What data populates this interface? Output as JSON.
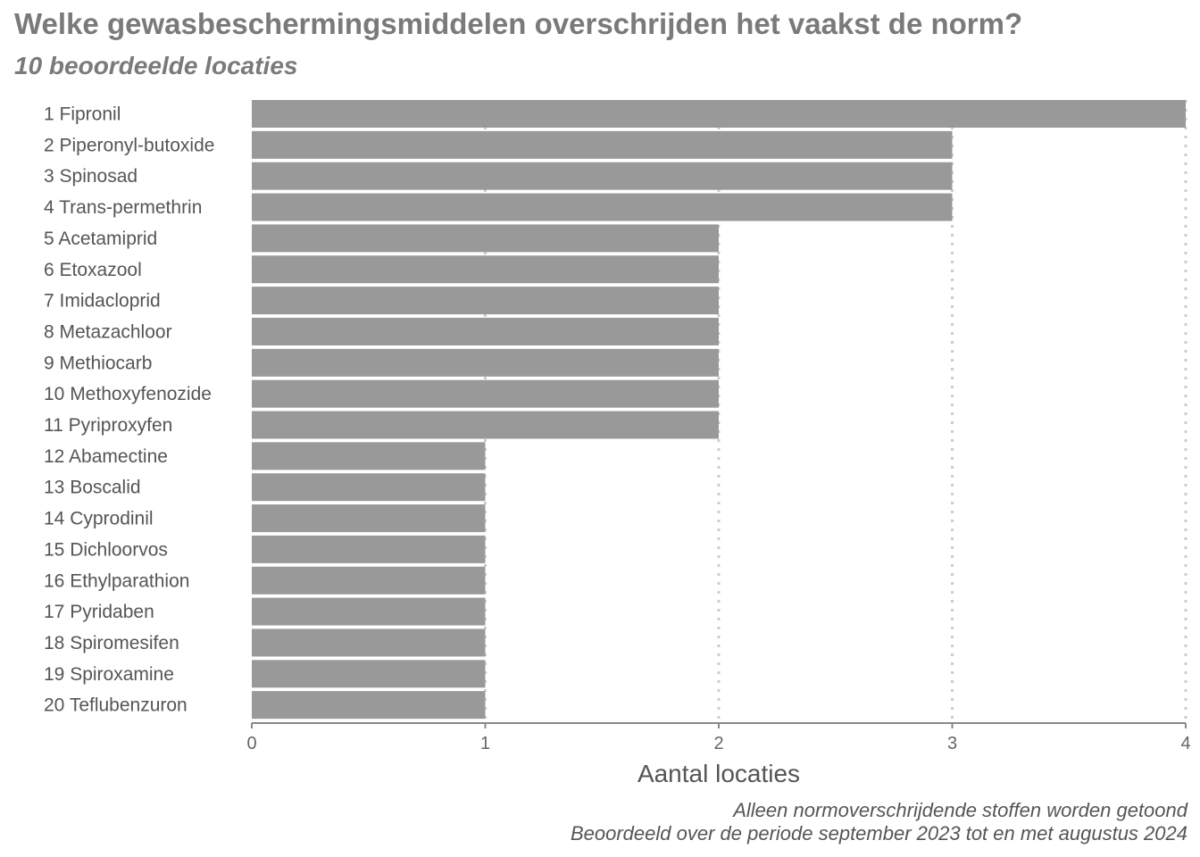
{
  "title": "Welke gewasbeschermingsmiddelen overschrijden het vaakst de norm?",
  "subtitle": "10 beoordeelde locaties",
  "notes": [
    "Alleen normoverschrijdende stoffen worden getoond",
    "Beoordeeld over de periode september 2023 tot en met augustus 2024"
  ],
  "colors": {
    "bar": "#999999",
    "grid": "#cccccc",
    "axis": "#888888",
    "text": "#555555"
  },
  "chart_data": {
    "type": "bar",
    "orientation": "horizontal",
    "title": "Welke gewasbeschermingsmiddelen overschrijden het vaakst de norm?",
    "subtitle": "10 beoordeelde locaties",
    "xlabel": "Aantal locaties",
    "ylabel": "",
    "xlim": [
      0,
      4
    ],
    "xticks": [
      0,
      1,
      2,
      3,
      4
    ],
    "grid": "vertical dotted",
    "legend": "none",
    "categories": [
      "1 Fipronil",
      "2 Piperonyl-butoxide",
      "3 Spinosad",
      "4 Trans-permethrin",
      "5 Acetamiprid",
      "6 Etoxazool",
      "7 Imidacloprid",
      "8 Metazachloor",
      "9 Methiocarb",
      "10 Methoxyfenozide",
      "11 Pyriproxyfen",
      "12 Abamectine",
      "13 Boscalid",
      "14 Cyprodinil",
      "15 Dichloorvos",
      "16 Ethylparathion",
      "17 Pyridaben",
      "18 Spiromesifen",
      "19 Spiroxamine",
      "20 Teflubenzuron"
    ],
    "values": [
      4,
      3,
      3,
      3,
      2,
      2,
      2,
      2,
      2,
      2,
      2,
      1,
      1,
      1,
      1,
      1,
      1,
      1,
      1,
      1
    ]
  }
}
